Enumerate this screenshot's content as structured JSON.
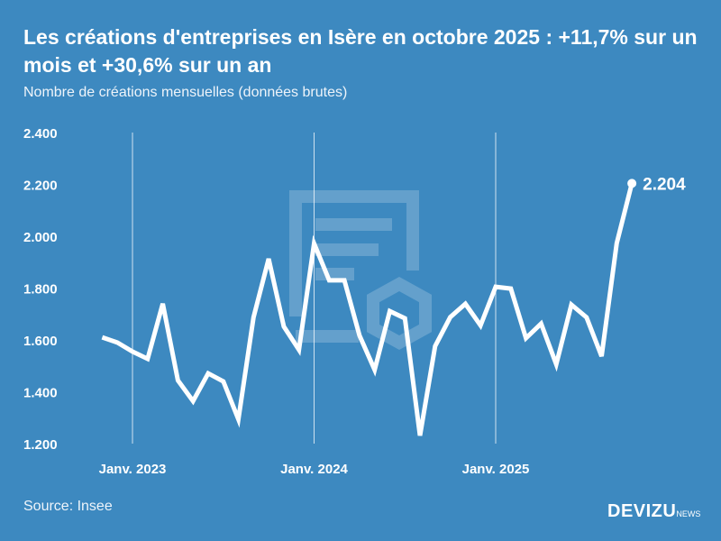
{
  "title": "Les créations d'entreprises en Isère en octobre 2025 : +11,7% sur un mois et +30,6% sur un an",
  "subtitle": "Nombre de créations mensuelles (données brutes)",
  "source": "Source: Insee",
  "logo": {
    "brand": "DEVIZU",
    "suffix": "NEWS"
  },
  "colors": {
    "background": "#3d89c0",
    "line": "#ffffff"
  },
  "chart_data": {
    "type": "line",
    "title": "",
    "xlabel": "",
    "ylabel": "",
    "ylim": [
      1200,
      2400
    ],
    "y_ticks": [
      1200,
      1400,
      1600,
      1800,
      2000,
      2200,
      2400
    ],
    "y_tick_labels": [
      "1.200",
      "1.400",
      "1.600",
      "1.800",
      "2.000",
      "2.200",
      "2.400"
    ],
    "x_ticks": [
      "2023-01",
      "2024-01",
      "2025-01"
    ],
    "x_tick_labels": [
      "Janv. 2023",
      "Janv. 2024",
      "Janv. 2025"
    ],
    "grid": "vertical lines at January",
    "x": [
      "2022-11",
      "2022-12",
      "2023-01",
      "2023-02",
      "2023-03",
      "2023-04",
      "2023-05",
      "2023-06",
      "2023-07",
      "2023-08",
      "2023-09",
      "2023-10",
      "2023-11",
      "2023-12",
      "2024-01",
      "2024-02",
      "2024-03",
      "2024-04",
      "2024-05",
      "2024-06",
      "2024-07",
      "2024-08",
      "2024-09",
      "2024-10",
      "2024-11",
      "2024-12",
      "2025-01",
      "2025-02",
      "2025-03",
      "2025-04",
      "2025-05",
      "2025-06",
      "2025-07",
      "2025-08",
      "2025-09",
      "2025-10"
    ],
    "values": [
      1610,
      1590,
      1555,
      1527,
      1740,
      1444,
      1364,
      1471,
      1440,
      1294,
      1687,
      1913,
      1652,
      1562,
      1972,
      1830,
      1830,
      1617,
      1485,
      1711,
      1683,
      1231,
      1576,
      1688,
      1739,
      1656,
      1805,
      1798,
      1607,
      1663,
      1506,
      1736,
      1687,
      1537,
      1973,
      2204
    ],
    "last_label": "2.204"
  }
}
